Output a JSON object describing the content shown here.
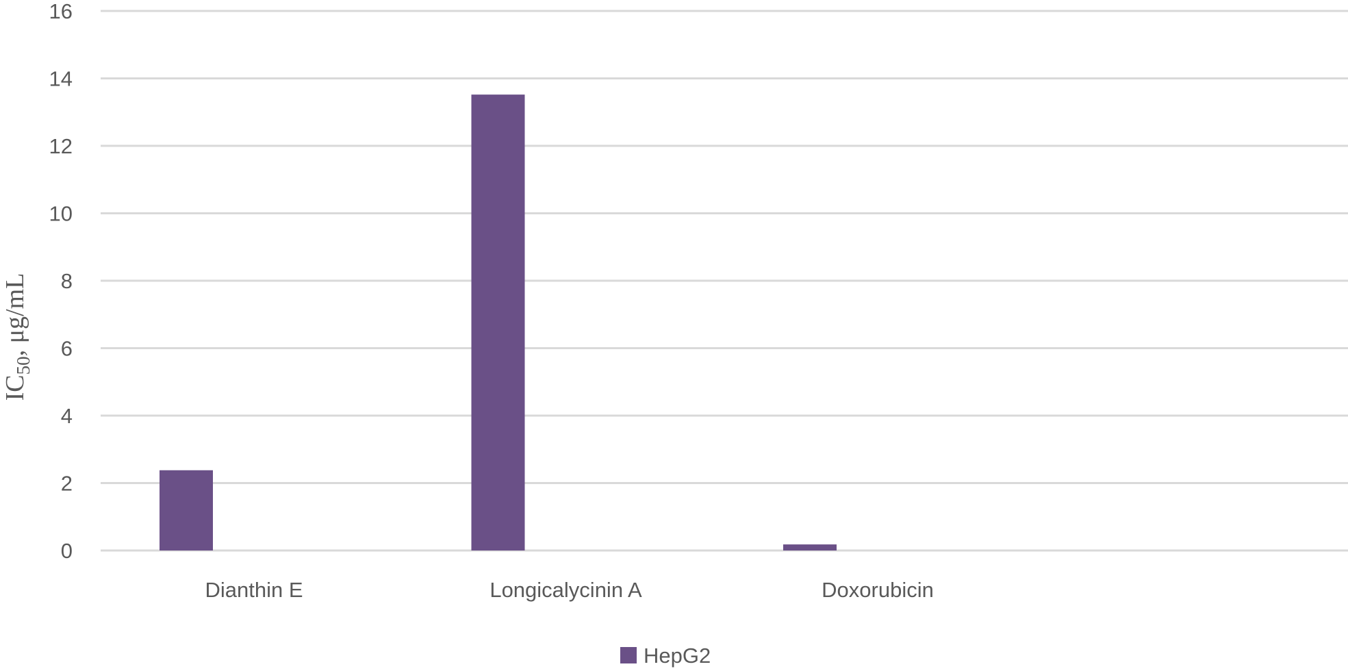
{
  "chart_data": {
    "type": "bar",
    "categories": [
      "Dianthin E",
      "Longicalycinin A",
      "Doxorubicin",
      ""
    ],
    "series": [
      {
        "name": "HepG2",
        "values": [
          2.38,
          13.52,
          0.18,
          null
        ]
      }
    ],
    "ylabel_main": "IC",
    "ylabel_sub": "50",
    "ylabel_rest": ", μg/mL",
    "ylim": [
      0,
      16
    ],
    "yticks": [
      0,
      2,
      4,
      6,
      8,
      10,
      12,
      14,
      16
    ],
    "grid": true,
    "legend_position": "bottom",
    "colors": {
      "HepG2": "#6a5087",
      "grid": "#d9d9d9",
      "text": "#595959"
    }
  }
}
